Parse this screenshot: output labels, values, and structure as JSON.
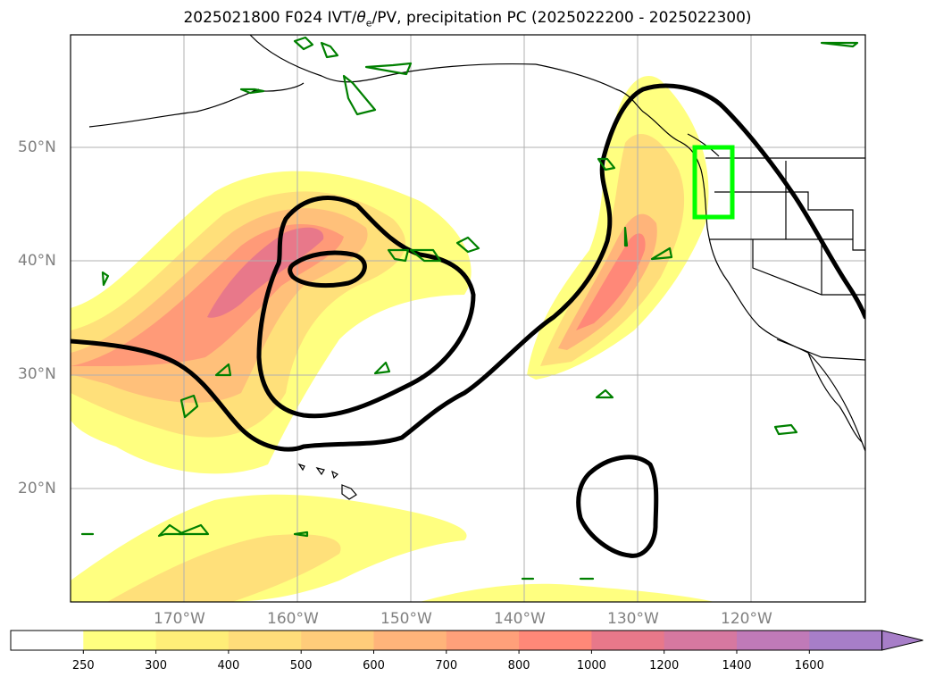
{
  "title": {
    "prefix": "2025021800 F024 IVT/",
    "theta": "θ",
    "sub": "e",
    "suffix": "/PV, precipitation PC (2025022200 - 2025022300)"
  },
  "lat_labels": [
    "50°N",
    "40°N",
    "30°N",
    "20°N"
  ],
  "lon_labels": [
    "170°W",
    "160°W",
    "150°W",
    "140°W",
    "130°W",
    "120°W"
  ],
  "colorbar": {
    "ticks": [
      "250",
      "300",
      "400",
      "500",
      "600",
      "700",
      "800",
      "1000",
      "1200",
      "1400",
      "1600"
    ],
    "colors": [
      "#ffffff",
      "#ffff80",
      "#ffee78",
      "#ffdd7a",
      "#ffcc7a",
      "#ffb47a",
      "#ffa07a",
      "#ff8878",
      "#e8788a",
      "#d678a0",
      "#c07ab8",
      "#a77ec8"
    ],
    "extend": "max"
  },
  "colors": {
    "ivt_fill": [
      "#ffff80",
      "#ffdd7a",
      "#ffb47a",
      "#ff8878",
      "#e8788a"
    ],
    "theta_contour": "#000000",
    "pv_contour": "#008000",
    "highlight_box": "#00ff00",
    "coastline": "#000000",
    "grid": "#b0b0b0"
  }
}
